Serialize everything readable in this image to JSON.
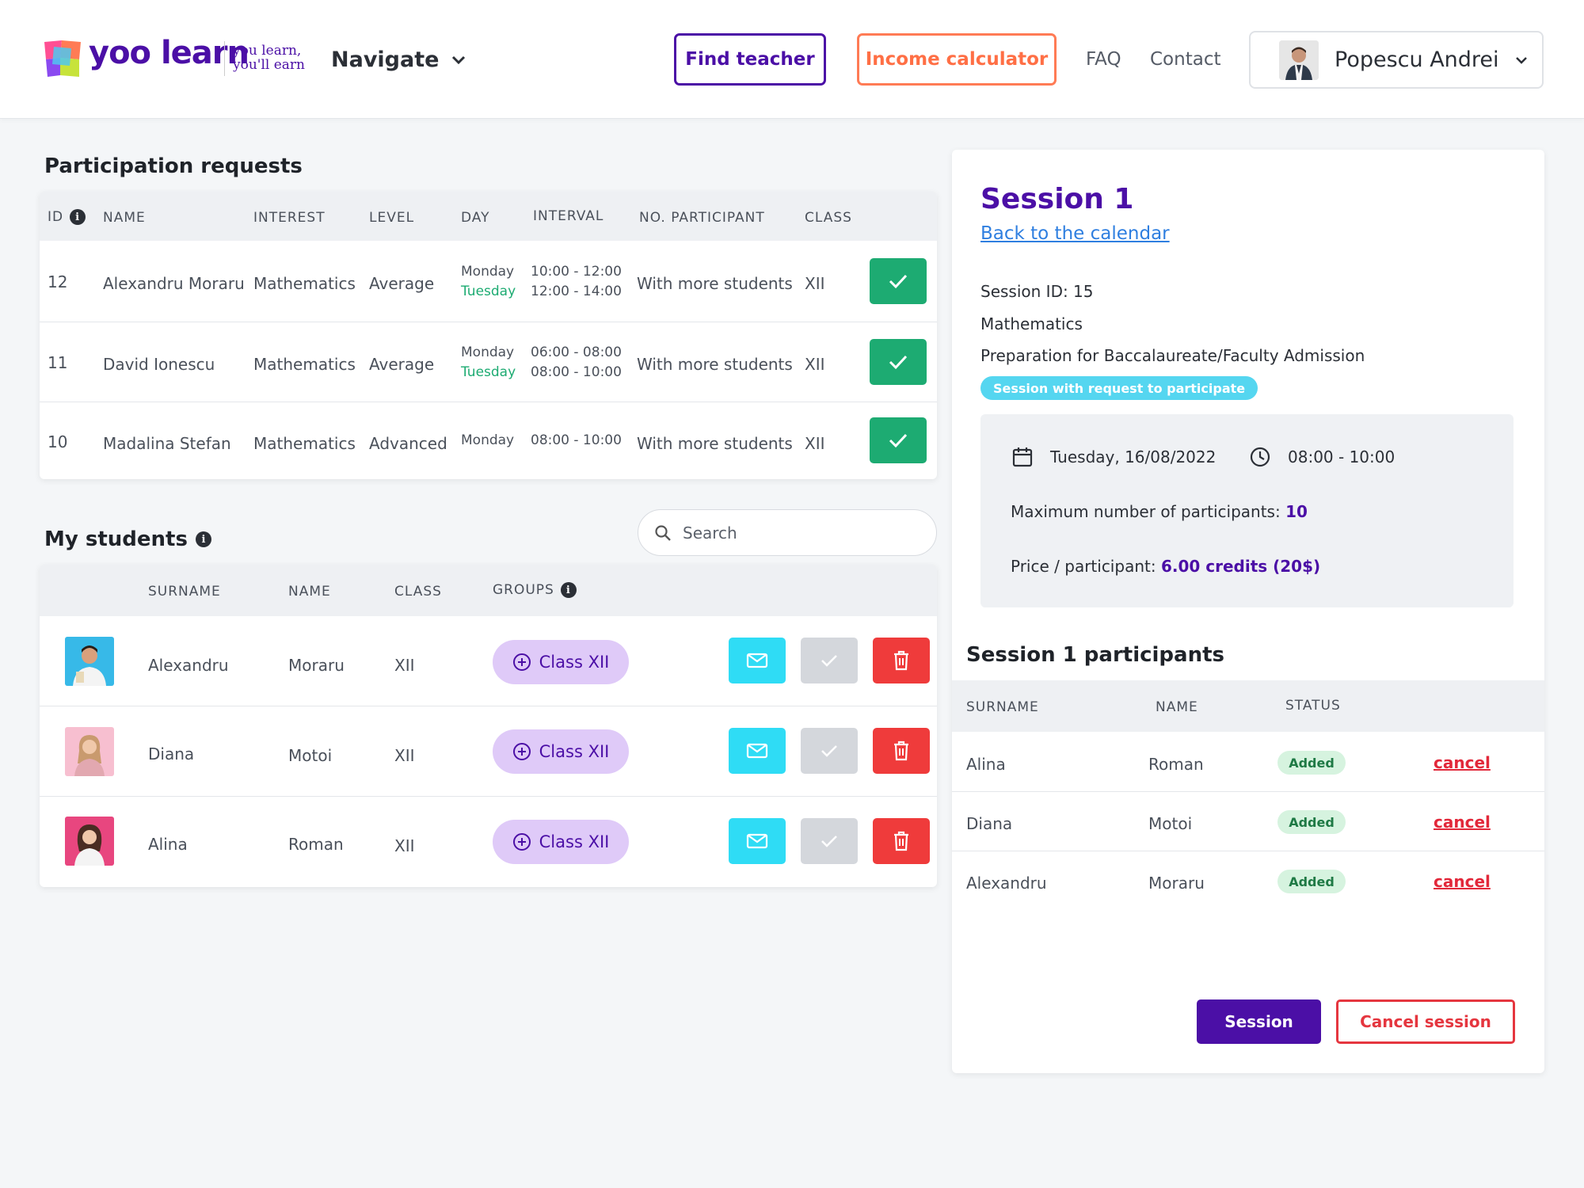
{
  "header": {
    "logo_text": "yoo learn",
    "tagline_line1": "you learn,",
    "tagline_line2": "you'll earn",
    "navigate_label": "Navigate",
    "find_teacher": "Find teacher",
    "income_calculator": "Income calculator",
    "faq": "FAQ",
    "contact": "Contact",
    "user_name": "Popescu Andrei"
  },
  "requests": {
    "title": "Participation requests",
    "columns": [
      "ID",
      "NAME",
      "INTEREST",
      "LEVEL",
      "DAY",
      "INTERVAL",
      "NO. PARTICIPANT",
      "CLASS"
    ],
    "rows": [
      {
        "id": "12",
        "name": "Alexandru Moraru",
        "interest": "Mathematics",
        "level": "Average",
        "day1": "Monday",
        "day2": "Tuesday",
        "interval1": "10:00 - 12:00",
        "interval2": "12:00 - 14:00",
        "participant": "With more students",
        "class": "XII"
      },
      {
        "id": "11",
        "name": "David Ionescu",
        "interest": "Mathematics",
        "level": "Average",
        "day1": "Monday",
        "day2": "Tuesday",
        "interval1": "06:00 - 08:00",
        "interval2": "08:00 - 10:00",
        "participant": "With more students",
        "class": "XII"
      },
      {
        "id": "10",
        "name": "Madalina Stefan",
        "interest": "Mathematics",
        "level": "Advanced",
        "day1": "Monday",
        "day2": "",
        "interval1": "08:00 - 10:00",
        "interval2": "",
        "participant": "With more students",
        "class": "XII"
      }
    ]
  },
  "students": {
    "title": "My students",
    "search_placeholder": "Search",
    "columns": [
      "SURNAME",
      "NAME",
      "CLASS",
      "GROUPS"
    ],
    "rows": [
      {
        "surname": "Alexandru",
        "name": "Moraru",
        "class": "XII",
        "group": "Class XII"
      },
      {
        "surname": "Diana",
        "name": "Motoi",
        "class": "XII",
        "group": "Class XII"
      },
      {
        "surname": "Alina",
        "name": "Roman",
        "class": "XII",
        "group": "Class XII"
      }
    ]
  },
  "session": {
    "title": "Session 1",
    "back_link": "Back to the calendar",
    "session_id": "Session ID: 15",
    "subject": "Mathematics",
    "description": "Preparation for Baccalaureate/Faculty Admission",
    "badge": "Session with request to participate",
    "date": "Tuesday, 16/08/2022",
    "time": "08:00 - 10:00",
    "max_label": "Maximum number of participants:",
    "max_value": "10",
    "price_label": "Price / participant:",
    "price_value": "6.00 credits (20$)",
    "participants_title": "Session 1 participants",
    "p_columns": [
      "SURNAME",
      "NAME",
      "STATUS"
    ],
    "participants": [
      {
        "surname": "Alina",
        "name": "Roman",
        "status": "Added",
        "action": "cancel"
      },
      {
        "surname": "Diana",
        "name": "Motoi",
        "status": "Added",
        "action": "cancel"
      },
      {
        "surname": "Alexandru",
        "name": "Moraru",
        "status": "Added",
        "action": "cancel"
      }
    ],
    "session_button": "Session",
    "cancel_session_button": "Cancel session"
  },
  "colors": {
    "brand": "#4b0fa6",
    "accent_orange": "#ff7b55",
    "success": "#1dab72",
    "danger": "#ef3b3b",
    "cyan": "#2fdcf5"
  }
}
